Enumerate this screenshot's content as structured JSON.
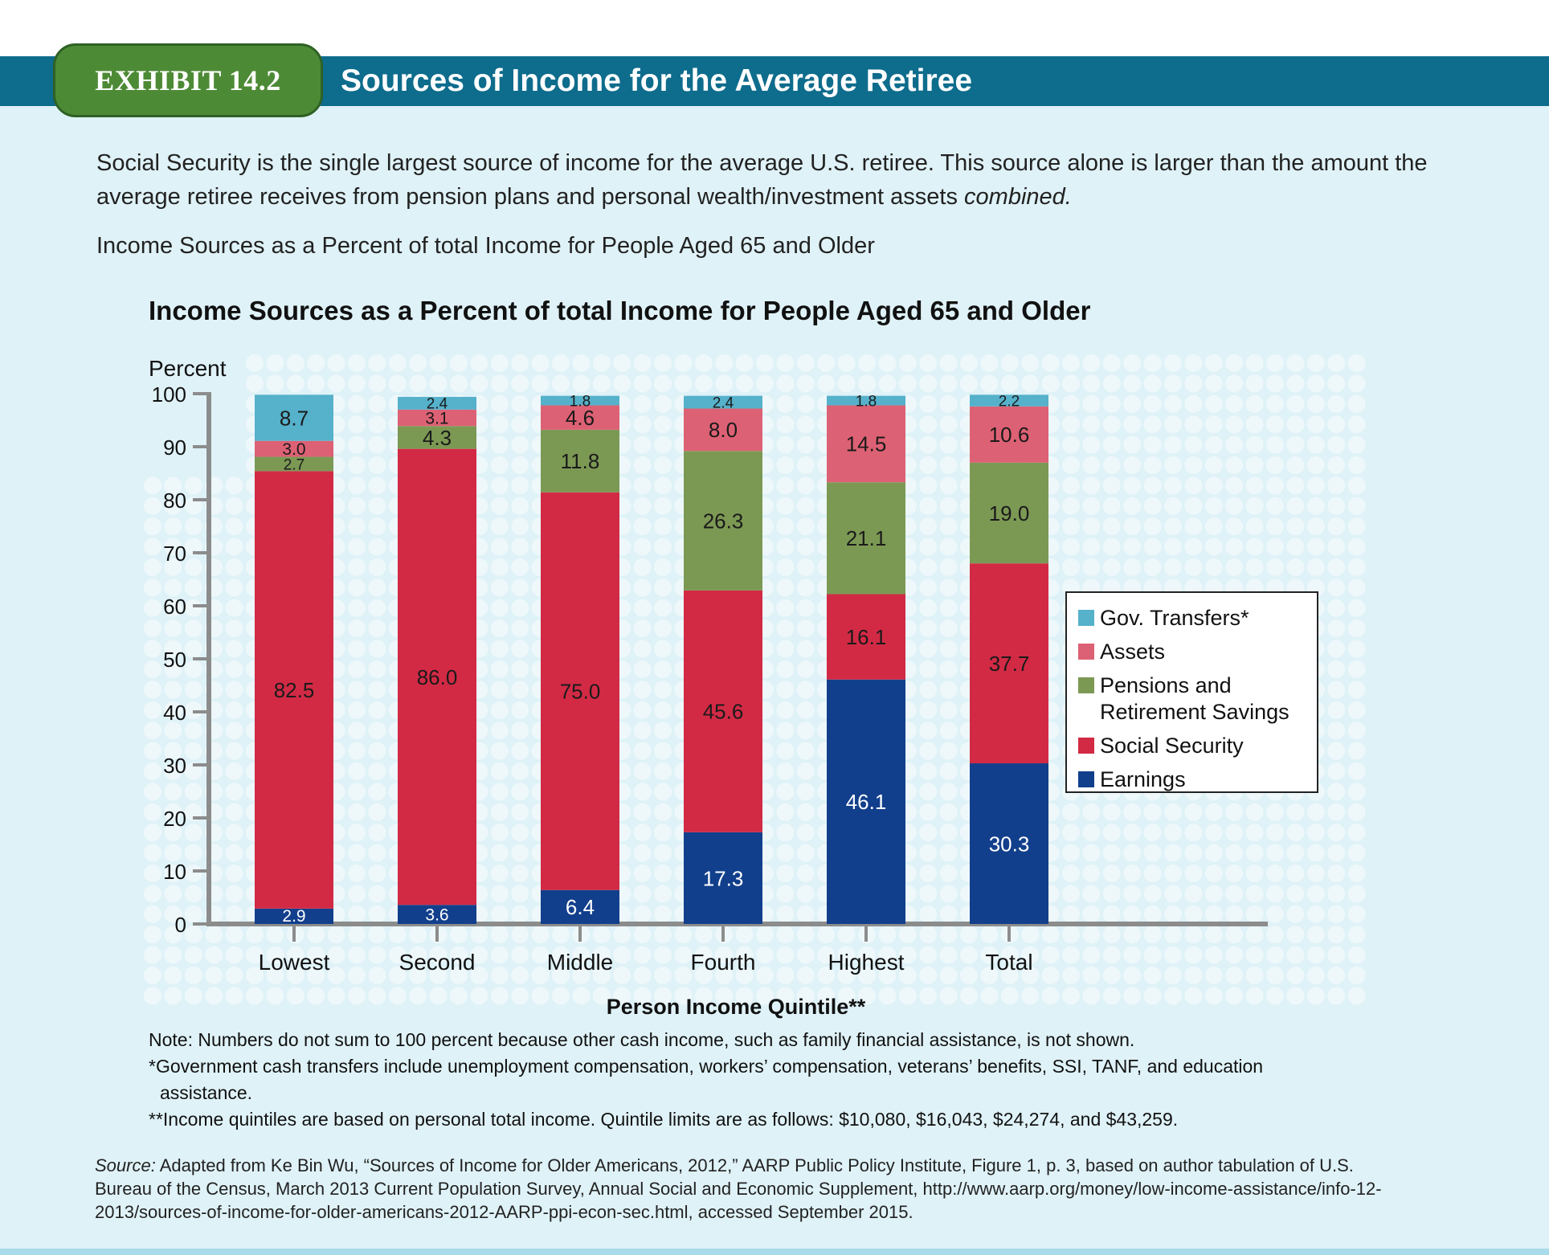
{
  "header": {
    "exhibit_label": "EXHIBIT 14.2",
    "title": "Sources of Income for the Average Retiree"
  },
  "intro": {
    "text": "Social Security is the single largest source of income for the average U.S. retiree. This source alone is larger than the amount the average retiree receives from pension plans and personal wealth/investment assets",
    "emphasis": "combined."
  },
  "subhead": "Income Sources as a Percent of total Income for People Aged 65 and Older",
  "chart_data": {
    "type": "bar",
    "stacked": true,
    "title": "Income Sources as a Percent of total Income for People Aged 65 and Older",
    "ylabel": "Percent",
    "xlabel": "Person Income Quintile**",
    "ylim": [
      0,
      100
    ],
    "yticks": [
      0,
      10,
      20,
      30,
      40,
      50,
      60,
      70,
      80,
      90,
      100
    ],
    "categories": [
      "Lowest",
      "Second",
      "Middle",
      "Fourth",
      "Highest",
      "Total"
    ],
    "series": [
      {
        "name": "Earnings",
        "color": "#123f8c",
        "values": [
          2.9,
          3.6,
          6.4,
          17.3,
          46.1,
          30.3
        ]
      },
      {
        "name": "Social Security",
        "color": "#d22a45",
        "values": [
          82.5,
          86.0,
          75.0,
          45.6,
          16.1,
          37.7
        ]
      },
      {
        "name": "Pensions and Retirement Savings",
        "color": "#7c9954",
        "values": [
          2.7,
          4.3,
          11.8,
          26.3,
          21.1,
          19.0
        ]
      },
      {
        "name": "Assets",
        "color": "#dd6174",
        "values": [
          3.0,
          3.1,
          4.6,
          8.0,
          14.5,
          10.6
        ]
      },
      {
        "name": "Gov. Transfers*",
        "color": "#56b1cb",
        "values": [
          8.7,
          2.4,
          1.8,
          2.4,
          1.8,
          2.2
        ]
      }
    ],
    "legend": {
      "position": "right",
      "entries": [
        {
          "lines": [
            "Gov. Transfers*"
          ],
          "color": "#56b1cb"
        },
        {
          "lines": [
            "Assets"
          ],
          "color": "#dd6174"
        },
        {
          "lines": [
            "Pensions and",
            "Retirement Savings"
          ],
          "color": "#7c9954"
        },
        {
          "lines": [
            "Social Security"
          ],
          "color": "#d22a45"
        },
        {
          "lines": [
            "Earnings"
          ],
          "color": "#123f8c"
        }
      ]
    },
    "grid": false
  },
  "notes": {
    "note": "Note: Numbers do not sum to 100 percent because other cash income, such as family financial assistance, is not shown.",
    "gov_line1": "*Government cash transfers include unemployment compensation, workers’ compensation, veterans’ benefits, SSI, TANF, and education",
    "gov_line2": "assistance.",
    "quintiles": "**Income quintiles are based on personal total income. Quintile limits are as follows: $10,080, $16,043, $24,274, and $43,259."
  },
  "source": {
    "lead": "Source:",
    "text": "Adapted from Ke Bin Wu, “Sources of Income for Older Americans, 2012,” AARP Public Policy Institute, Figure 1, p. 3, based on author tabulation of U.S. Bureau of the Census, March 2013 Current Population Survey, Annual Social and Economic Supplement, http://www.aarp.org/money/low-income-assistance/info-12-2013/sources-of-income-for-older-americans-2012-AARP-ppi-econ-sec.html, accessed September 2015."
  }
}
